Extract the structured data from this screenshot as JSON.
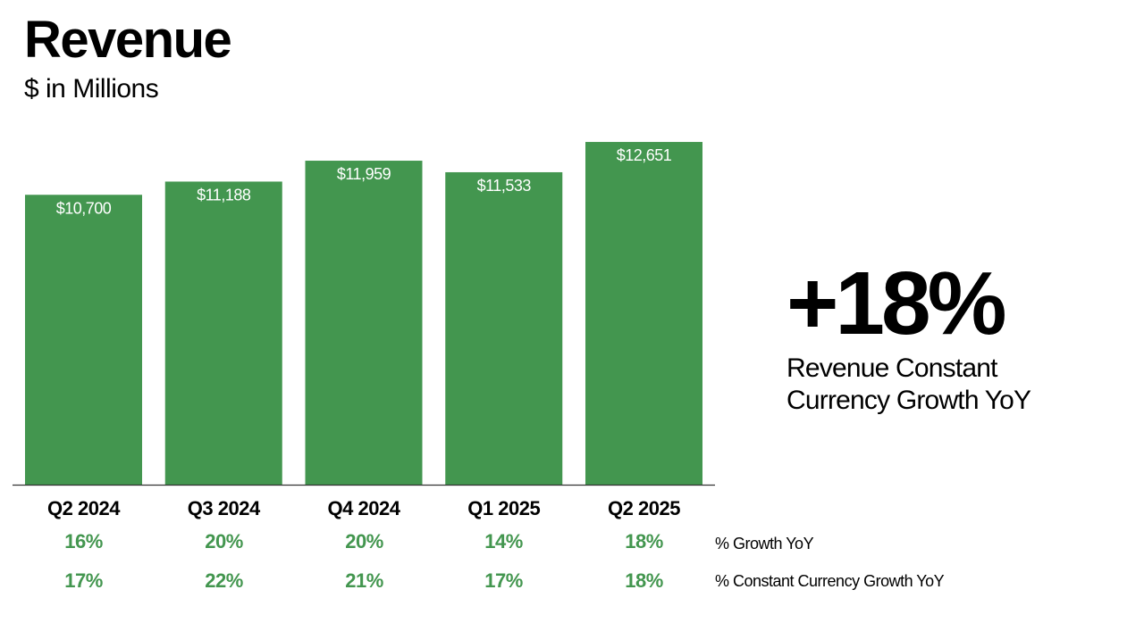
{
  "header": {
    "title": "Revenue",
    "subtitle": "$ in Millions"
  },
  "chart_data": {
    "type": "bar",
    "title": "Revenue",
    "subtitle": "$ in Millions",
    "categories": [
      "Q2 2024",
      "Q3 2024",
      "Q4 2024",
      "Q1 2025",
      "Q2 2025"
    ],
    "values": [
      10700,
      11188,
      11959,
      11533,
      12651
    ],
    "data_labels": [
      "$10,700",
      "$11,188",
      "$11,959",
      "$11,533",
      "$12,651"
    ],
    "baseline_value": 0,
    "bar_color": "#43964f",
    "label_color": "#ffffff",
    "grid": false,
    "legend": "none"
  },
  "growth_rows": [
    {
      "label": "% Growth YoY",
      "values": [
        "16%",
        "20%",
        "20%",
        "14%",
        "18%"
      ],
      "color": "#43964f"
    },
    {
      "label": "% Constant Currency Growth YoY",
      "values": [
        "17%",
        "22%",
        "21%",
        "17%",
        "18%"
      ],
      "color": "#43964f"
    }
  ],
  "highlight": {
    "value": "+18%",
    "caption": "Revenue Constant Currency Growth YoY"
  }
}
